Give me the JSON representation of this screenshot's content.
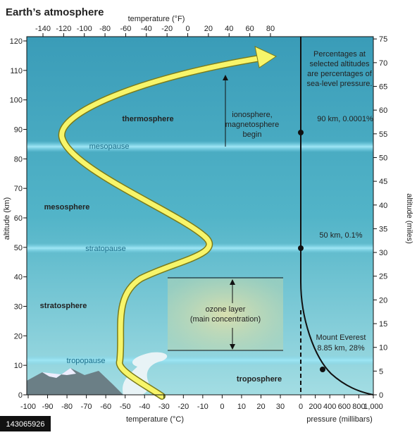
{
  "title": "Earth’s atmosphere",
  "top_axis": {
    "label": "temperature (°F)",
    "ticks": [
      -140,
      -120,
      -100,
      -80,
      -60,
      -40,
      -20,
      0,
      20,
      40,
      60,
      80
    ]
  },
  "bottom_axis": {
    "label": "temperature (°C)",
    "ticks": [
      -100,
      -90,
      -80,
      -70,
      -60,
      -50,
      -40,
      -30,
      -20,
      -10,
      0,
      10,
      20,
      30
    ]
  },
  "left_axis": {
    "label": "altitude (km)",
    "ticks": [
      0,
      10,
      20,
      30,
      40,
      50,
      60,
      70,
      80,
      90,
      100,
      110,
      120
    ]
  },
  "right_axis": {
    "label": "altitude (miles)",
    "ticks": [
      0,
      5,
      10,
      15,
      20,
      25,
      30,
      35,
      40,
      45,
      50,
      55,
      60,
      65,
      70,
      75
    ]
  },
  "pressure_axis": {
    "label": "pressure (millibars)",
    "ticks": [
      0,
      200,
      400,
      600,
      800,
      {
        "value": 1000,
        "label": "1,000"
      }
    ]
  },
  "layers": {
    "thermosphere": "thermosphere",
    "mesosphere": "mesosphere",
    "stratosphere": "stratosphere",
    "troposphere": "troposphere"
  },
  "boundaries": {
    "mesopause": "mesopause",
    "stratopause": "stratopause",
    "tropopause": "tropopause"
  },
  "notes": {
    "percentages": [
      "Percentages at",
      "selected altitudes",
      "are percentages of",
      "sea-level pressure."
    ],
    "km90": "90 km, 0.0001%",
    "km50": "50 km, 0.1%",
    "everest": [
      "Mount Everest",
      "8.85 km, 28%"
    ],
    "ionosphere": [
      "ionosphere,",
      "magnetosphere",
      "begin"
    ],
    "ozone": [
      "ozone layer",
      "(main concentration)"
    ]
  },
  "image_id": "143065926"
}
